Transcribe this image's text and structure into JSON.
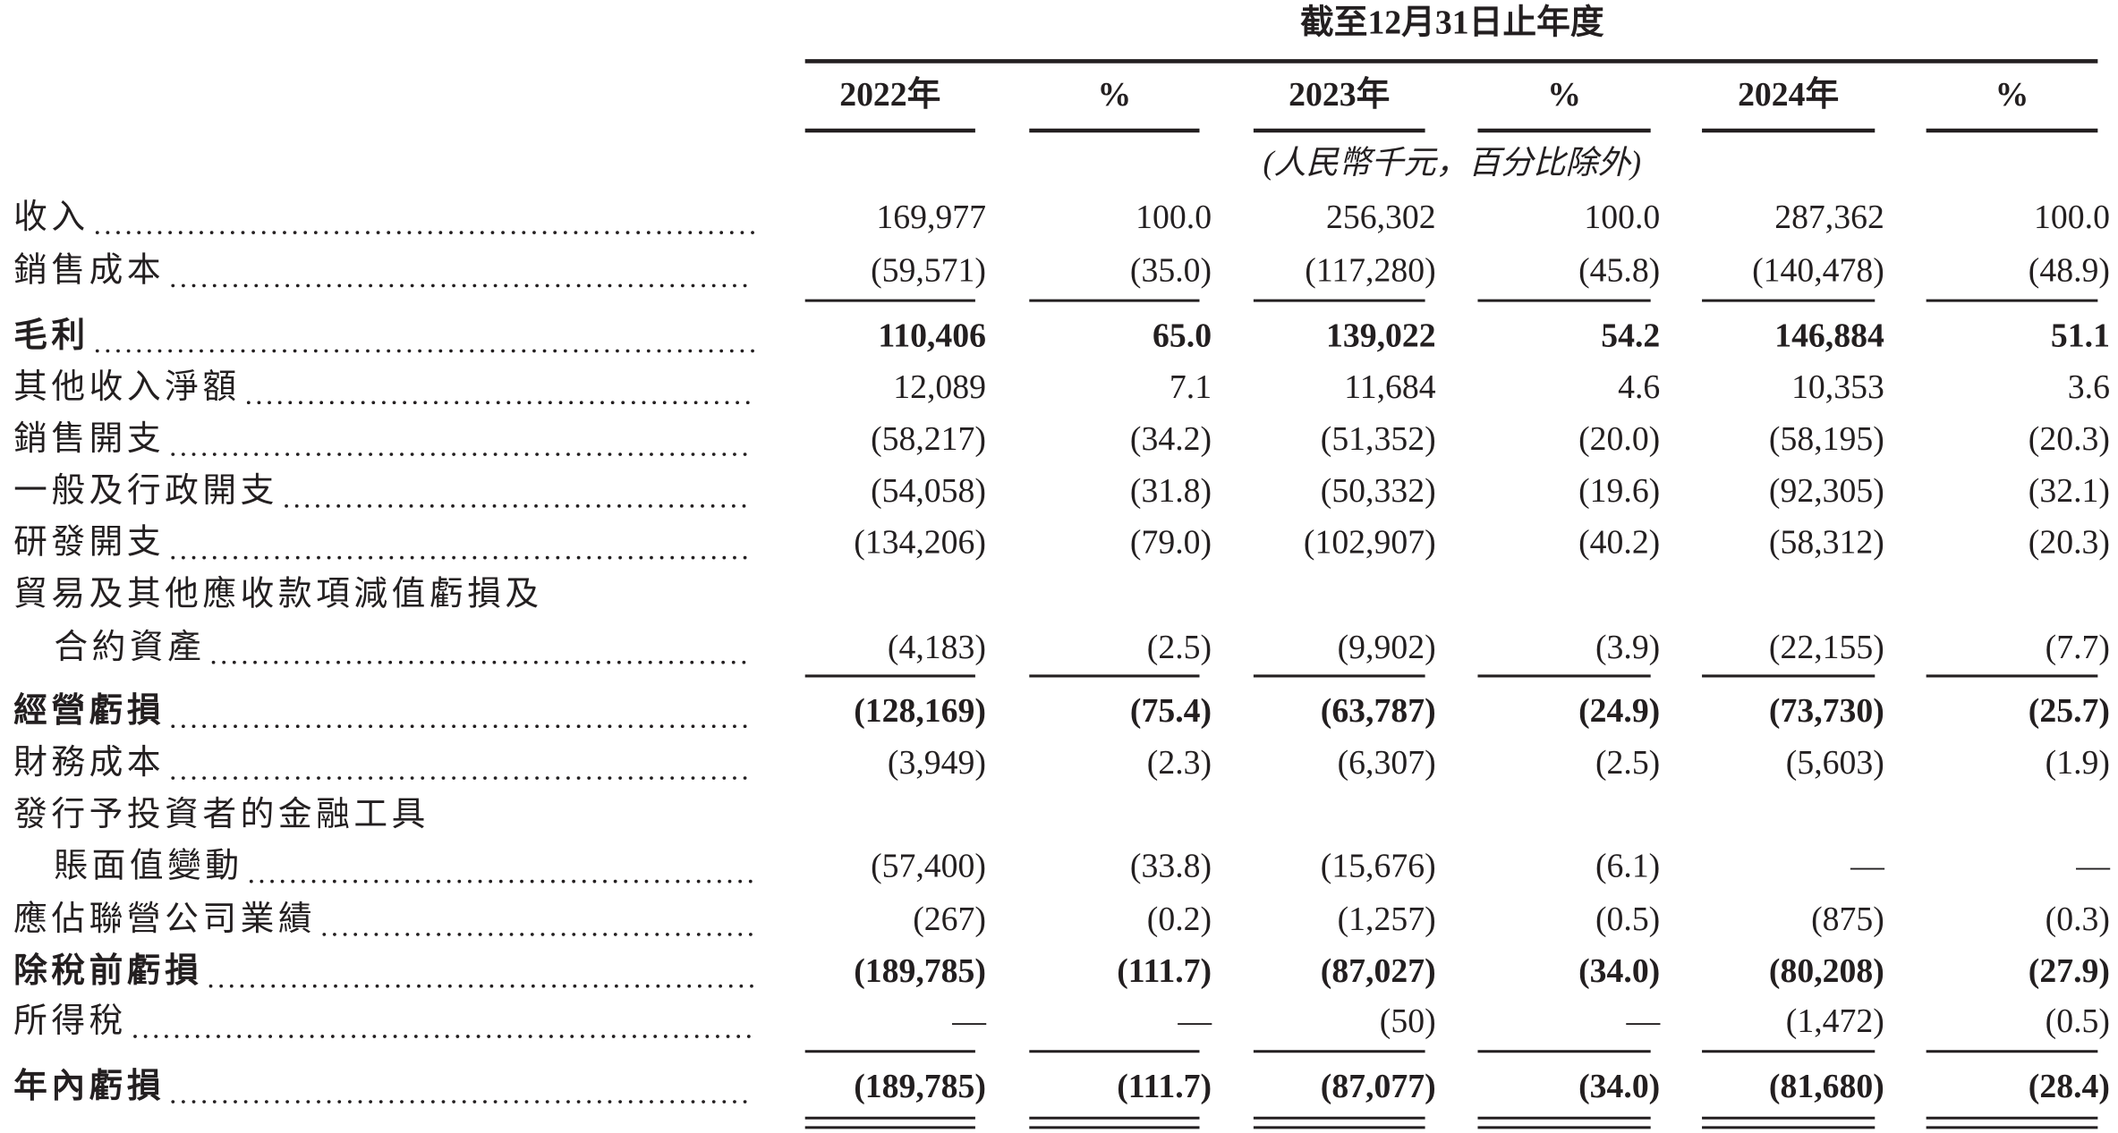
{
  "table": {
    "period": "截至12月31日止年度",
    "columns": [
      "2022年",
      "%",
      "2023年",
      "%",
      "2024年",
      "%"
    ],
    "note": "(人民幣千元，百分比除外)",
    "rows": [
      {
        "label": "收入",
        "values": [
          "169,977",
          "100.0",
          "256,302",
          "100.0",
          "287,362",
          "100.0"
        ]
      },
      {
        "label": "銷售成本",
        "values": [
          "(59,571)",
          "(35.0)",
          "(117,280)",
          "(45.8)",
          "(140,478)",
          "(48.9)"
        ]
      },
      {
        "label": "毛利",
        "values": [
          "110,406",
          "65.0",
          "139,022",
          "54.2",
          "146,884",
          "51.1"
        ]
      },
      {
        "label": "其他收入淨額",
        "values": [
          "12,089",
          "7.1",
          "11,684",
          "4.6",
          "10,353",
          "3.6"
        ]
      },
      {
        "label": "銷售開支",
        "values": [
          "(58,217)",
          "(34.2)",
          "(51,352)",
          "(20.0)",
          "(58,195)",
          "(20.3)"
        ]
      },
      {
        "label": "一般及行政開支",
        "values": [
          "(54,058)",
          "(31.8)",
          "(50,332)",
          "(19.6)",
          "(92,305)",
          "(32.1)"
        ]
      },
      {
        "label": "研發開支",
        "values": [
          "(134,206)",
          "(79.0)",
          "(102,907)",
          "(40.2)",
          "(58,312)",
          "(20.3)"
        ]
      },
      {
        "label": "貿易及其他應收款項減值虧損及"
      },
      {
        "label": "合約資產",
        "values": [
          "(4,183)",
          "(2.5)",
          "(9,902)",
          "(3.9)",
          "(22,155)",
          "(7.7)"
        ]
      },
      {
        "label": "經營虧損",
        "values": [
          "(128,169)",
          "(75.4)",
          "(63,787)",
          "(24.9)",
          "(73,730)",
          "(25.7)"
        ]
      },
      {
        "label": "財務成本",
        "values": [
          "(3,949)",
          "(2.3)",
          "(6,307)",
          "(2.5)",
          "(5,603)",
          "(1.9)"
        ]
      },
      {
        "label": "發行予投資者的金融工具"
      },
      {
        "label": "賬面值變動",
        "values": [
          "(57,400)",
          "(33.8)",
          "(15,676)",
          "(6.1)",
          "—",
          "—"
        ]
      },
      {
        "label": "應佔聯營公司業績",
        "values": [
          "(267)",
          "(0.2)",
          "(1,257)",
          "(0.5)",
          "(875)",
          "(0.3)"
        ]
      },
      {
        "label": "除稅前虧損",
        "values": [
          "(189,785)",
          "(111.7)",
          "(87,027)",
          "(34.0)",
          "(80,208)",
          "(27.9)"
        ]
      },
      {
        "label": "所得稅",
        "values": [
          "—",
          "—",
          "(50)",
          "—",
          "(1,472)",
          "(0.5)"
        ]
      },
      {
        "label": "年內虧損",
        "values": [
          "(189,785)",
          "(111.7)",
          "(87,077)",
          "(34.0)",
          "(81,680)",
          "(28.4)"
        ]
      }
    ]
  }
}
